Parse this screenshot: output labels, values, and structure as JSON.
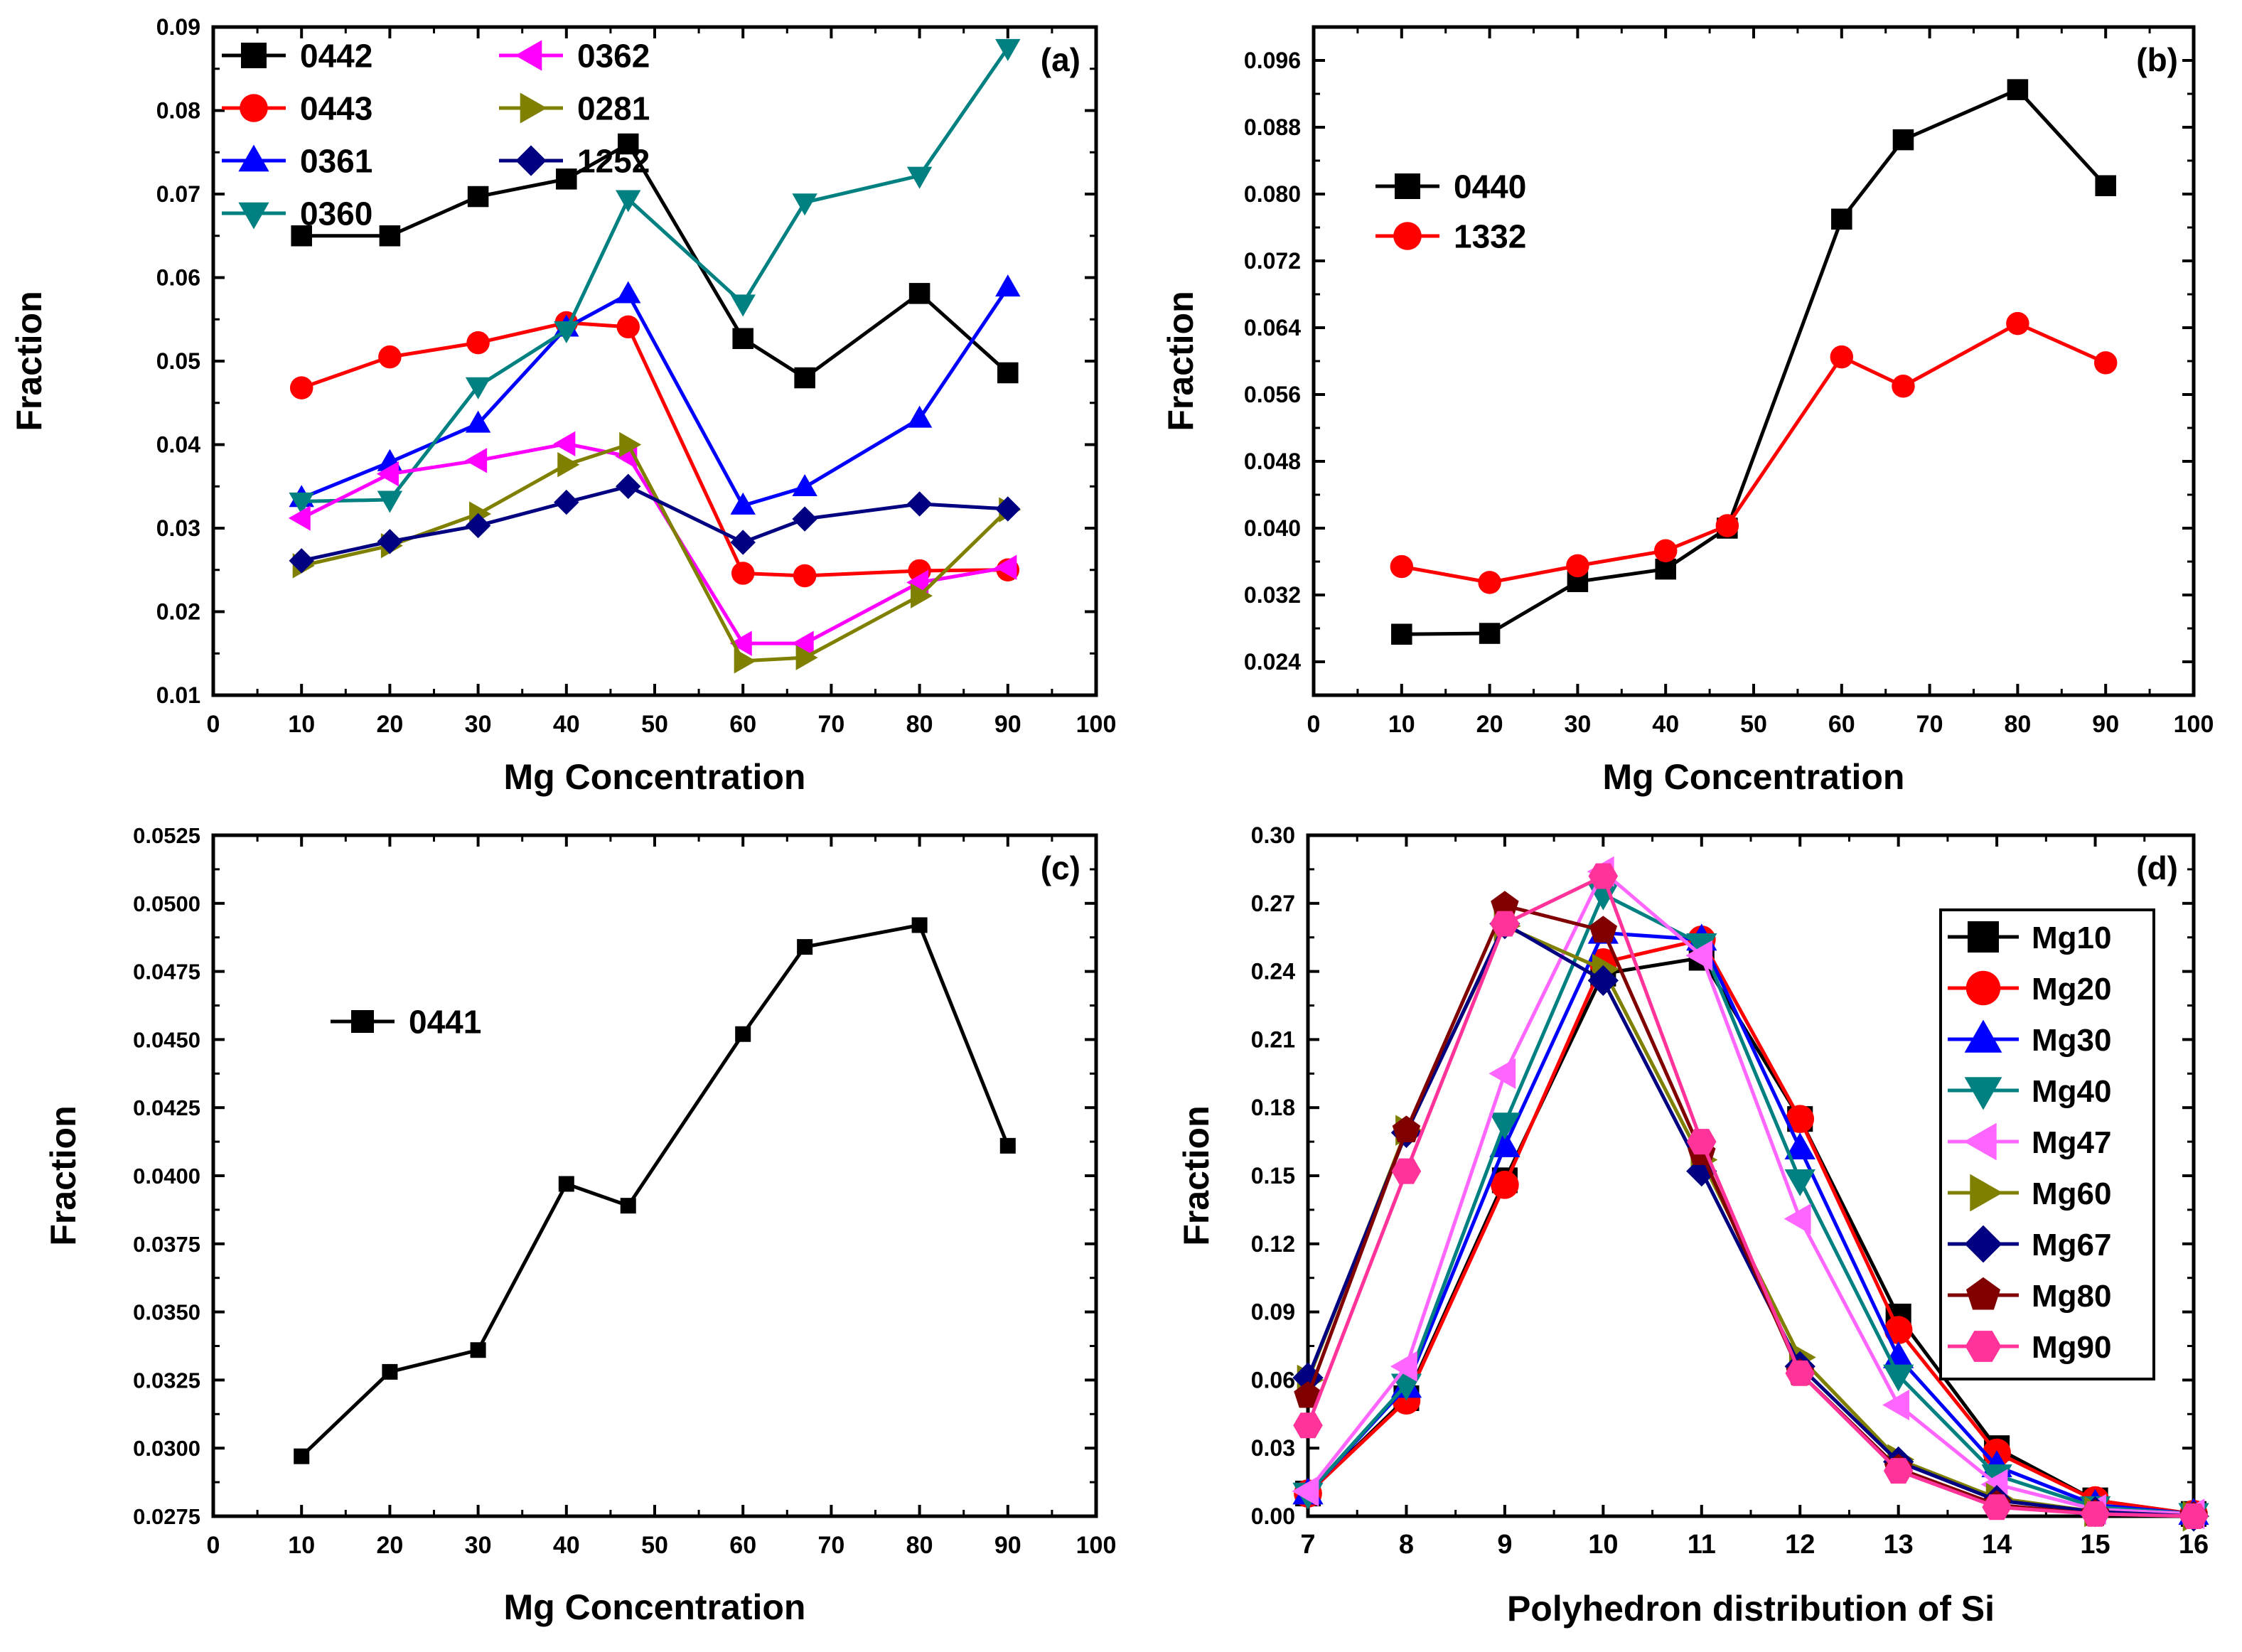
{
  "chart_data": [
    {
      "type": "line",
      "panel_label": "(a)",
      "xlabel": "Mg Concentration",
      "ylabel": "Fraction",
      "xlim": [
        0,
        100
      ],
      "ylim": [
        0.01,
        0.09
      ],
      "xticks": [
        0,
        10,
        20,
        30,
        40,
        50,
        60,
        70,
        80,
        90,
        100
      ],
      "yticks": [
        0.01,
        0.02,
        0.03,
        0.04,
        0.05,
        0.06,
        0.07,
        0.08,
        0.09
      ],
      "ytick_labels": [
        "0.01",
        "0.02",
        "0.03",
        "0.04",
        "0.05",
        "0.06",
        "0.07",
        "0.08",
        "0.09"
      ],
      "legend_location": "top-left",
      "legend_columns": 2,
      "x": [
        10,
        20,
        30,
        40,
        47,
        60,
        67,
        80,
        90
      ],
      "series": [
        {
          "name": "0442",
          "color": "#000000",
          "marker": "square",
          "values": [
            0.065,
            0.065,
            0.0697,
            0.0718,
            0.076,
            0.0527,
            0.048,
            0.0581,
            0.0486
          ]
        },
        {
          "name": "0443",
          "color": "#ff0000",
          "marker": "circle",
          "values": [
            0.0468,
            0.0505,
            0.0522,
            0.0546,
            0.0541,
            0.0246,
            0.0243,
            0.0249,
            0.025
          ]
        },
        {
          "name": "0361",
          "color": "#0000ff",
          "marker": "triangle-up",
          "values": [
            0.0336,
            0.0379,
            0.0425,
            0.054,
            0.058,
            0.0327,
            0.0349,
            0.0431,
            0.0588
          ]
        },
        {
          "name": "0360",
          "color": "#008080",
          "marker": "triangle-down",
          "values": [
            0.0332,
            0.0334,
            0.047,
            0.0537,
            0.0694,
            0.0569,
            0.069,
            0.0722,
            0.0875
          ]
        },
        {
          "name": "0362",
          "color": "#ff00ff",
          "marker": "triangle-left",
          "values": [
            0.0312,
            0.0365,
            0.0381,
            0.0401,
            0.0386,
            0.0162,
            0.0162,
            0.0235,
            0.0253
          ]
        },
        {
          "name": "0281",
          "color": "#808000",
          "marker": "triangle-right",
          "values": [
            0.0255,
            0.0279,
            0.0317,
            0.0376,
            0.04,
            0.0141,
            0.0145,
            0.0219,
            0.0322
          ]
        },
        {
          "name": "1252",
          "color": "#000080",
          "marker": "diamond",
          "values": [
            0.0261,
            0.0284,
            0.0303,
            0.0331,
            0.035,
            0.0283,
            0.0311,
            0.0329,
            0.0323
          ]
        }
      ]
    },
    {
      "type": "line",
      "panel_label": "(b)",
      "xlabel": "Mg Concentration",
      "ylabel": "Fraction",
      "xlim": [
        0,
        100
      ],
      "ylim": [
        0.02,
        0.1
      ],
      "xticks": [
        0,
        10,
        20,
        30,
        40,
        50,
        60,
        70,
        80,
        90,
        100
      ],
      "yticks": [
        0.024,
        0.032,
        0.04,
        0.048,
        0.056,
        0.064,
        0.072,
        0.08,
        0.088,
        0.096
      ],
      "ytick_labels": [
        "0.024",
        "0.032",
        "0.040",
        "0.048",
        "0.056",
        "0.064",
        "0.072",
        "0.080",
        "0.088",
        "0.096"
      ],
      "legend_location": "upper-left",
      "legend_columns": 1,
      "x": [
        10,
        20,
        30,
        40,
        47,
        60,
        67,
        80,
        90
      ],
      "series": [
        {
          "name": "0440",
          "color": "#000000",
          "marker": "square",
          "values": [
            0.0273,
            0.0274,
            0.0336,
            0.0351,
            0.04,
            0.077,
            0.0865,
            0.0925,
            0.081
          ]
        },
        {
          "name": "1332",
          "color": "#ff0000",
          "marker": "circle",
          "values": [
            0.0354,
            0.0335,
            0.0355,
            0.0373,
            0.0403,
            0.0605,
            0.057,
            0.0645,
            0.0598
          ]
        }
      ]
    },
    {
      "type": "line",
      "panel_label": "(c)",
      "xlabel": "Mg Concentration",
      "ylabel": "Fraction",
      "xlim": [
        0,
        100
      ],
      "ylim": [
        0.0275,
        0.0525
      ],
      "xticks": [
        0,
        10,
        20,
        30,
        40,
        50,
        60,
        70,
        80,
        90,
        100
      ],
      "yticks": [
        0.0275,
        0.03,
        0.0325,
        0.035,
        0.0375,
        0.04,
        0.0425,
        0.045,
        0.0475,
        0.05,
        0.0525
      ],
      "ytick_labels": [
        "0.0275",
        "0.0300",
        "0.0325",
        "0.0350",
        "0.0375",
        "0.0400",
        "0.0425",
        "0.0450",
        "0.0475",
        "0.0500",
        "0.0525"
      ],
      "legend_location": "upper-left",
      "legend_columns": 1,
      "x": [
        10,
        20,
        30,
        40,
        47,
        60,
        67,
        80,
        90
      ],
      "series": [
        {
          "name": "0441",
          "color": "#000000",
          "marker": "square-small",
          "values": [
            0.0297,
            0.0328,
            0.0336,
            0.0397,
            0.0389,
            0.0452,
            0.0484,
            0.0492,
            0.0411
          ]
        }
      ]
    },
    {
      "type": "line",
      "panel_label": "(d)",
      "xlabel": "Polyhedron distribution of Si",
      "ylabel": "Fraction",
      "xlim": [
        7,
        16
      ],
      "ylim": [
        0,
        0.3
      ],
      "xticks": [
        7,
        8,
        9,
        10,
        11,
        12,
        13,
        14,
        15,
        16
      ],
      "yticks": [
        0,
        0.03,
        0.06,
        0.09,
        0.12,
        0.15,
        0.18,
        0.21,
        0.24,
        0.27,
        0.3
      ],
      "ytick_labels": [
        "0.00",
        "0.03",
        "0.06",
        "0.09",
        "0.12",
        "0.15",
        "0.18",
        "0.21",
        "0.24",
        "0.27",
        "0.30"
      ],
      "legend_location": "right",
      "legend_columns": 1,
      "x": [
        7,
        8,
        9,
        10,
        11,
        12,
        13,
        14,
        15,
        16
      ],
      "series": [
        {
          "name": "Mg10",
          "color": "#000000",
          "marker": "square",
          "values": [
            0.01,
            0.052,
            0.148,
            0.239,
            0.246,
            0.175,
            0.088,
            0.03,
            0.007,
            0.001
          ]
        },
        {
          "name": "Mg20",
          "color": "#ff0000",
          "marker": "circle",
          "values": [
            0.01,
            0.051,
            0.146,
            0.244,
            0.254,
            0.175,
            0.082,
            0.028,
            0.007,
            0.001
          ]
        },
        {
          "name": "Mg30",
          "color": "#0000ff",
          "marker": "triangle-up",
          "values": [
            0.01,
            0.057,
            0.163,
            0.257,
            0.254,
            0.162,
            0.07,
            0.022,
            0.005,
            0.001
          ]
        },
        {
          "name": "Mg40",
          "color": "#008080",
          "marker": "triangle-down",
          "values": [
            0.01,
            0.058,
            0.173,
            0.274,
            0.252,
            0.148,
            0.062,
            0.018,
            0.004,
            0.001
          ]
        },
        {
          "name": "Mg47",
          "color": "#ff66ff",
          "marker": "triangle-left",
          "values": [
            0.011,
            0.066,
            0.195,
            0.284,
            0.247,
            0.131,
            0.049,
            0.014,
            0.003,
            0.001
          ]
        },
        {
          "name": "Mg60",
          "color": "#808000",
          "marker": "triangle-right",
          "values": [
            0.06,
            0.17,
            0.26,
            0.241,
            0.157,
            0.07,
            0.025,
            0.008,
            0.002,
            0.0
          ]
        },
        {
          "name": "Mg67",
          "color": "#000080",
          "marker": "diamond",
          "values": [
            0.061,
            0.169,
            0.261,
            0.236,
            0.152,
            0.066,
            0.024,
            0.007,
            0.002,
            0.0
          ]
        },
        {
          "name": "Mg80",
          "color": "#800000",
          "marker": "pentagon",
          "values": [
            0.053,
            0.17,
            0.269,
            0.258,
            0.16,
            0.063,
            0.021,
            0.005,
            0.001,
            0.0
          ]
        },
        {
          "name": "Mg90",
          "color": "#ff3399",
          "marker": "hexagon",
          "values": [
            0.04,
            0.152,
            0.261,
            0.282,
            0.165,
            0.063,
            0.02,
            0.004,
            0.001,
            0.0
          ]
        }
      ]
    }
  ]
}
